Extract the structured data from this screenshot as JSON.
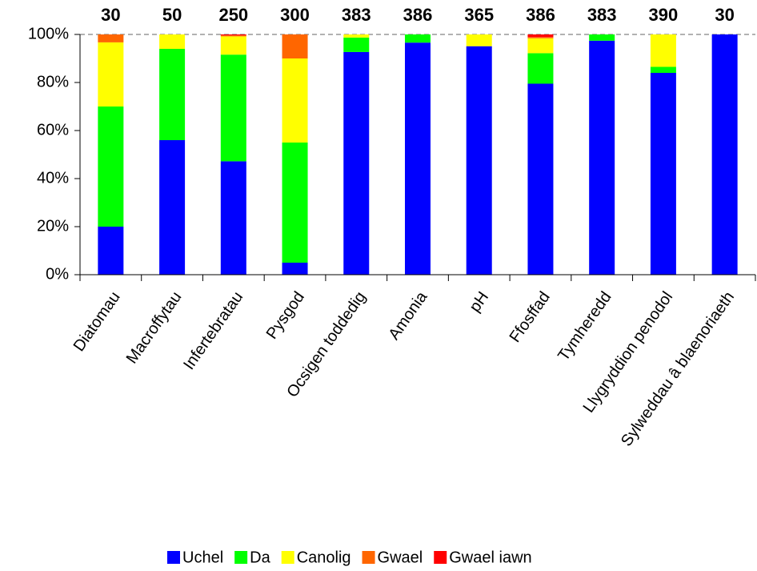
{
  "chart_data": {
    "type": "stacked_bar_percent",
    "categories": [
      "Diatomau",
      "Macroffytau",
      "Infertebratau",
      "Pysgod",
      "Ocsigen toddedig",
      "Amonia",
      "pH",
      "Ffosffad",
      "Tymheredd",
      "Llygryddion penodol",
      "Sylweddau â blaenoriaeth"
    ],
    "counts": [
      30,
      50,
      250,
      300,
      383,
      386,
      365,
      386,
      383,
      390,
      30
    ],
    "series": [
      {
        "name": "Uchel",
        "color": "#0000ff",
        "values": [
          20,
          56,
          47.2,
          5,
          92.7,
          96.6,
          95.1,
          79.5,
          97.4,
          84,
          100
        ]
      },
      {
        "name": "Da",
        "color": "#00ff00",
        "values": [
          50,
          38,
          44.4,
          50,
          6,
          3.4,
          0,
          12.7,
          2.6,
          2.5,
          0
        ]
      },
      {
        "name": "Canolig",
        "color": "#ffff00",
        "values": [
          26.7,
          6,
          7.6,
          35,
          1.3,
          0,
          4.9,
          6.2,
          0,
          13.5,
          0
        ]
      },
      {
        "name": "Gwael",
        "color": "#ff6600",
        "values": [
          3.3,
          0,
          0.4,
          10,
          0,
          0,
          0,
          0.5,
          0,
          0,
          0
        ]
      },
      {
        "name": "Gwael iawn",
        "color": "#ff0000",
        "values": [
          0,
          0,
          0.4,
          0,
          0,
          0,
          0,
          1.1,
          0,
          0,
          0
        ]
      }
    ],
    "ylim": [
      0,
      100
    ],
    "yticks": [
      {
        "value": 0,
        "label": "0%"
      },
      {
        "value": 20,
        "label": "20%"
      },
      {
        "value": 40,
        "label": "40%"
      },
      {
        "value": 60,
        "label": "60%"
      },
      {
        "value": 80,
        "label": "80%"
      },
      {
        "value": 100,
        "label": "100%"
      }
    ],
    "legend": "bottom"
  }
}
